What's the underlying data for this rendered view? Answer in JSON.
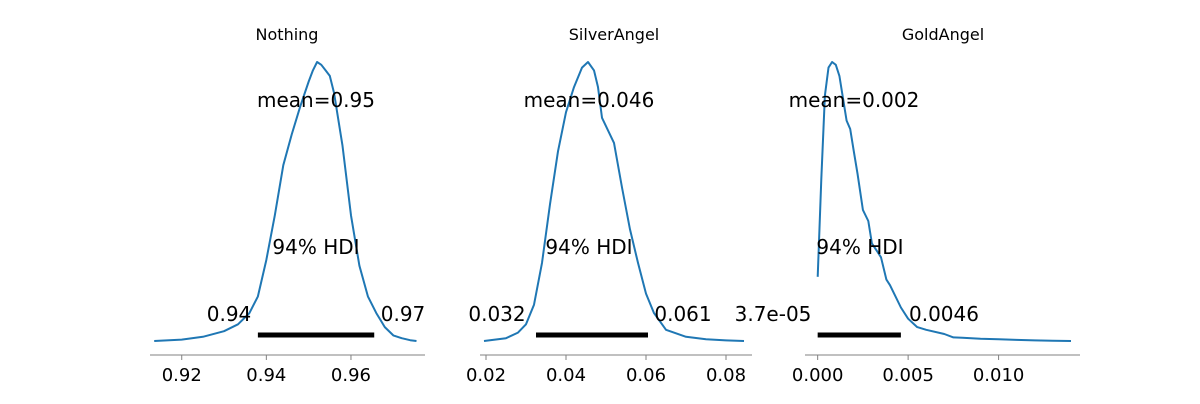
{
  "chart_data": [
    {
      "type": "area",
      "title": "Nothing",
      "mean_label": "mean=0.95",
      "hdi_label": "94% HDI",
      "hdi": [
        0.938,
        0.9655
      ],
      "hdi_low_label": "0.94",
      "hdi_high_label": "0.97",
      "xlim": [
        0.9125,
        0.9775
      ],
      "xticks": [
        0.92,
        0.94,
        0.96
      ],
      "xtick_labels": [
        "0.92",
        "0.94",
        "0.96"
      ],
      "curve_color": "#1f77b4",
      "x": [
        0.9135,
        0.92,
        0.925,
        0.93,
        0.9333,
        0.936,
        0.938,
        0.94,
        0.942,
        0.944,
        0.946,
        0.948,
        0.95,
        0.951,
        0.952,
        0.953,
        0.954,
        0.955,
        0.956,
        0.958,
        0.96,
        0.962,
        0.964,
        0.966,
        0.968,
        0.97,
        0.972,
        0.974,
        0.9755
      ],
      "density": [
        0.0,
        0.005,
        0.015,
        0.035,
        0.06,
        0.1,
        0.16,
        0.29,
        0.45,
        0.63,
        0.74,
        0.84,
        0.93,
        0.97,
        1.0,
        0.99,
        0.97,
        0.95,
        0.89,
        0.7,
        0.45,
        0.27,
        0.16,
        0.1,
        0.05,
        0.02,
        0.01,
        0.003,
        0.0
      ]
    },
    {
      "type": "area",
      "title": "SilverAngel",
      "mean_label": "mean=0.046",
      "hdi_label": "94% HDI",
      "hdi": [
        0.0325,
        0.0605
      ],
      "hdi_low_label": "0.032",
      "hdi_high_label": "0.061",
      "xlim": [
        0.0185,
        0.0865
      ],
      "xticks": [
        0.02,
        0.04,
        0.06,
        0.08
      ],
      "xtick_labels": [
        "0.02",
        "0.04",
        "0.06",
        "0.08"
      ],
      "curve_color": "#1f77b4",
      "x": [
        0.0195,
        0.025,
        0.028,
        0.03,
        0.032,
        0.034,
        0.036,
        0.038,
        0.04,
        0.042,
        0.044,
        0.0455,
        0.047,
        0.048,
        0.049,
        0.05,
        0.052,
        0.054,
        0.056,
        0.058,
        0.06,
        0.062,
        0.065,
        0.07,
        0.075,
        0.08,
        0.0845
      ],
      "density": [
        0.0,
        0.01,
        0.03,
        0.06,
        0.13,
        0.28,
        0.49,
        0.68,
        0.82,
        0.91,
        0.98,
        1.0,
        0.97,
        0.91,
        0.8,
        0.77,
        0.71,
        0.55,
        0.4,
        0.28,
        0.17,
        0.1,
        0.04,
        0.015,
        0.006,
        0.002,
        0.0
      ]
    },
    {
      "type": "area",
      "title": "GoldAngel",
      "mean_label": "mean=0.002",
      "hdi_label": "94% HDI",
      "hdi": [
        0.0,
        0.0046
      ],
      "hdi_low_label": "3.7e-05",
      "hdi_high_label": "0.0046",
      "xlim": [
        -0.0007,
        0.0145
      ],
      "xticks": [
        0.0,
        0.005,
        0.01
      ],
      "xtick_labels": [
        "0.000",
        "0.005",
        "0.010"
      ],
      "curve_color": "#1f77b4",
      "x": [
        0.0,
        0.0002,
        0.0004,
        0.0006,
        0.0008,
        0.001,
        0.0012,
        0.0014,
        0.0016,
        0.0018,
        0.002,
        0.0022,
        0.0025,
        0.0028,
        0.003,
        0.0033,
        0.0035,
        0.0038,
        0.004,
        0.0043,
        0.0046,
        0.005,
        0.0055,
        0.006,
        0.007,
        0.0075,
        0.008,
        0.009,
        0.01,
        0.011,
        0.012,
        0.013,
        0.014
      ],
      "density": [
        0.23,
        0.58,
        0.88,
        0.98,
        1.0,
        0.99,
        0.95,
        0.87,
        0.79,
        0.76,
        0.68,
        0.6,
        0.47,
        0.43,
        0.35,
        0.32,
        0.3,
        0.22,
        0.2,
        0.16,
        0.12,
        0.08,
        0.05,
        0.04,
        0.025,
        0.013,
        0.012,
        0.008,
        0.006,
        0.004,
        0.002,
        0.001,
        0.0
      ]
    }
  ]
}
